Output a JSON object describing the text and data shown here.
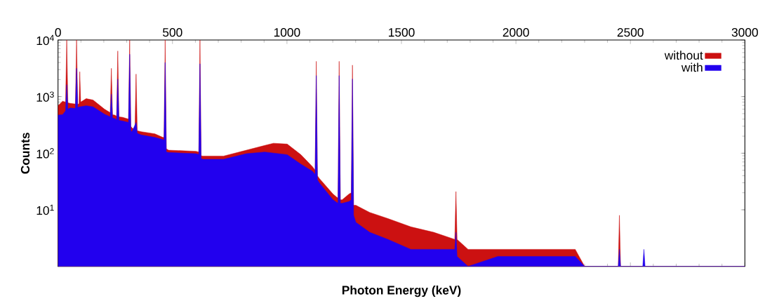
{
  "chart_data": {
    "type": "area",
    "xlabel": "Photon Energy (keV)",
    "ylabel": "Counts",
    "log": "y",
    "xlim": [
      0,
      3000
    ],
    "xticks": [
      0,
      500,
      1000,
      1500,
      2000,
      2500,
      3000
    ],
    "ylim": [
      1,
      10000
    ],
    "yticks": [
      {
        "value": 10,
        "label": "10$^{1}$"
      },
      {
        "value": 100,
        "label": "10$^{2}$"
      },
      {
        "value": 1000,
        "label": "10$^{3}$"
      },
      {
        "value": 10000,
        "label": "10$^{4}$"
      }
    ],
    "legend": "top right",
    "series": [
      {
        "name": "without",
        "color": "#cc1111",
        "x": [
          0,
          20,
          33,
          38,
          43,
          53,
          76,
          81,
          86,
          92,
          95,
          99,
          123,
          153,
          203,
          228,
          233,
          238,
          248,
          256,
          261,
          266,
          283,
          308,
          313,
          318,
          323,
          336,
          341,
          346,
          363,
          423,
          458,
          463,
          468,
          473,
          483,
          603,
          615,
          620,
          625,
          633,
          723,
          823,
          903,
          941,
          1001,
          1061,
          1111,
          1123,
          1128,
          1133,
          1141,
          1201,
          1223,
          1228,
          1233,
          1241,
          1271,
          1281,
          1286,
          1291,
          1301,
          1361,
          1441,
          1541,
          1641,
          1733,
          1738,
          1743,
          1791,
          1921,
          2259,
          2300,
          2447,
          2452,
          2457,
          2600,
          3000
        ],
        "values": [
          690,
          830,
          800,
          10000,
          780,
          760,
          740,
          10000,
          720,
          760,
          2750,
          800,
          920,
          870,
          600,
          520,
          3160,
          480,
          470,
          450,
          6400,
          440,
          430,
          400,
          10000,
          300,
          280,
          260,
          2500,
          250,
          240,
          220,
          190,
          190,
          10000,
          120,
          113,
          108,
          105,
          10000,
          90,
          89,
          89,
          113,
          137,
          150,
          145,
          94,
          58,
          50,
          4200,
          40,
          36,
          19,
          16,
          4200,
          15,
          15,
          19,
          20,
          3600,
          12,
          12,
          9,
          7,
          5,
          4,
          3,
          21,
          3,
          2,
          2,
          2,
          1,
          1,
          8,
          1,
          1,
          1
        ]
      },
      {
        "name": "with",
        "color": "#2200ee",
        "x": [
          0,
          20,
          33,
          38,
          43,
          53,
          76,
          81,
          86,
          95,
          123,
          153,
          203,
          228,
          233,
          238,
          248,
          256,
          261,
          266,
          283,
          308,
          313,
          318,
          323,
          341,
          346,
          363,
          423,
          458,
          463,
          468,
          473,
          483,
          603,
          615,
          620,
          625,
          633,
          723,
          823,
          903,
          1001,
          1061,
          1111,
          1123,
          1128,
          1133,
          1141,
          1201,
          1223,
          1228,
          1233,
          1241,
          1271,
          1281,
          1286,
          1291,
          1301,
          1361,
          1441,
          1541,
          1641,
          1733,
          1738,
          1743,
          1791,
          1921,
          2259,
          2300,
          2447,
          2452,
          2457,
          2554,
          2559,
          2564,
          3000
        ],
        "values": [
          470,
          480,
          560,
          1620,
          600,
          630,
          620,
          3160,
          640,
          660,
          690,
          660,
          490,
          440,
          1100,
          420,
          410,
          390,
          2040,
          380,
          370,
          350,
          5600,
          250,
          240,
          350,
          225,
          210,
          190,
          174,
          170,
          4000,
          105,
          103,
          98,
          95,
          3800,
          80,
          78,
          78,
          98,
          105,
          94,
          64,
          48,
          42,
          2350,
          34,
          30,
          15,
          13,
          2350,
          13,
          13,
          14,
          15,
          2050,
          8,
          6,
          4,
          3,
          2,
          2,
          2,
          4,
          1.5,
          1,
          1.5,
          1.5,
          1,
          1,
          2,
          1,
          1,
          2,
          1,
          1
        ]
      }
    ]
  }
}
